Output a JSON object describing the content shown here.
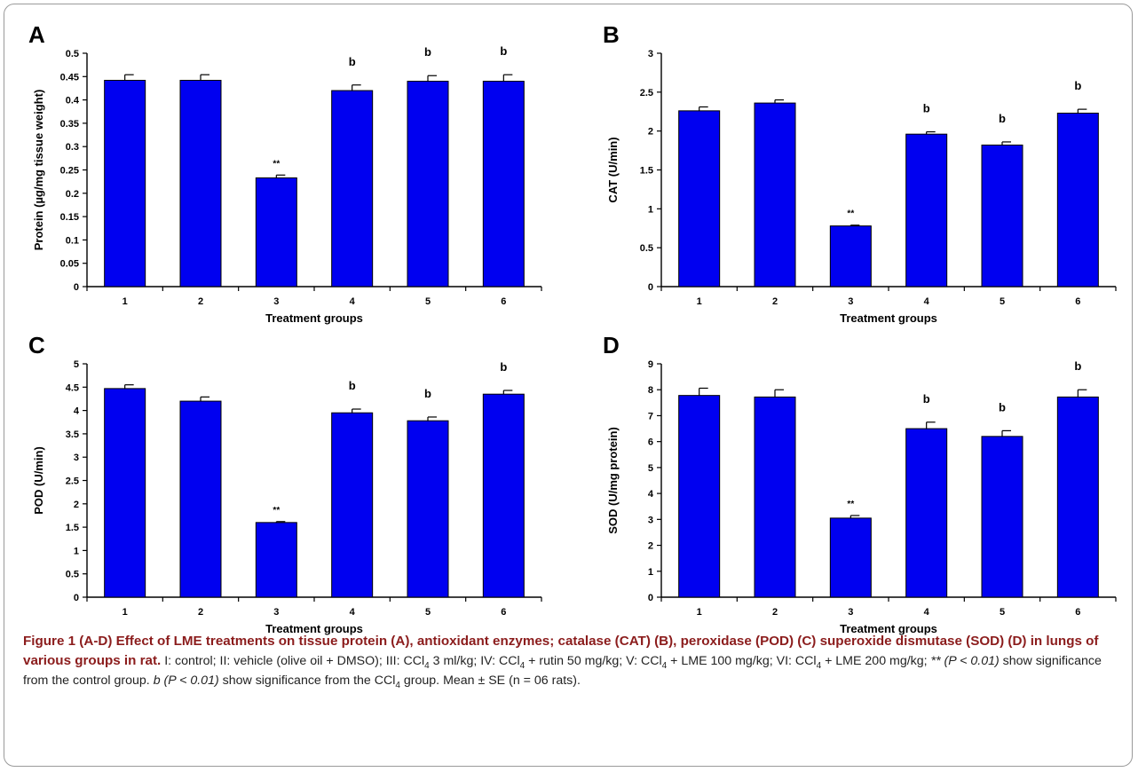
{
  "chart_data": [
    {
      "type": "bar",
      "panel": "A",
      "categories": [
        "1",
        "2",
        "3",
        "4",
        "5",
        "6"
      ],
      "values": [
        0.442,
        0.442,
        0.233,
        0.42,
        0.44,
        0.44
      ],
      "errors": [
        0.012,
        0.012,
        0.006,
        0.012,
        0.012,
        0.014
      ],
      "annotations": [
        "",
        "",
        "**",
        "b",
        "b",
        "b"
      ],
      "yticks": [
        "0",
        "0.05",
        "0.1",
        "0.15",
        "0.2",
        "0.25",
        "0.3",
        "0.35",
        "0.4",
        "0.45",
        "0.5"
      ],
      "ylim": [
        0,
        0.5
      ],
      "xlabel": "Treatment groups",
      "ylabel": "Protein (µg/mg tissue weight)"
    },
    {
      "type": "bar",
      "panel": "B",
      "categories": [
        "1",
        "2",
        "3",
        "4",
        "5",
        "6"
      ],
      "values": [
        2.26,
        2.36,
        0.78,
        1.96,
        1.82,
        2.23
      ],
      "errors": [
        0.05,
        0.04,
        0.01,
        0.03,
        0.04,
        0.05
      ],
      "annotations": [
        "",
        "",
        "**",
        "b",
        "b",
        "b"
      ],
      "yticks": [
        "0",
        "0.5",
        "1",
        "1.5",
        "2",
        "2.5",
        "3"
      ],
      "ylim": [
        0,
        3
      ],
      "xlabel": "Treatment groups",
      "ylabel": "CAT (U/min)"
    },
    {
      "type": "bar",
      "panel": "C",
      "categories": [
        "1",
        "2",
        "3",
        "4",
        "5",
        "6"
      ],
      "values": [
        4.47,
        4.2,
        1.6,
        3.95,
        3.78,
        4.35
      ],
      "errors": [
        0.08,
        0.09,
        0.02,
        0.08,
        0.08,
        0.08
      ],
      "annotations": [
        "",
        "",
        "**",
        "b",
        "b",
        "b"
      ],
      "yticks": [
        "0",
        "0.5",
        "1",
        "1.5",
        "2",
        "2.5",
        "3",
        "3.5",
        "4",
        "4.5",
        "5"
      ],
      "ylim": [
        0,
        5
      ],
      "xlabel": "Treatment groups",
      "ylabel": "POD (U/min)"
    },
    {
      "type": "bar",
      "panel": "D",
      "categories": [
        "1",
        "2",
        "3",
        "4",
        "5",
        "6"
      ],
      "values": [
        7.78,
        7.72,
        3.05,
        6.5,
        6.2,
        7.72
      ],
      "errors": [
        0.28,
        0.28,
        0.1,
        0.25,
        0.22,
        0.28
      ],
      "annotations": [
        "",
        "",
        "**",
        "b",
        "b",
        "b"
      ],
      "yticks": [
        "0",
        "1",
        "2",
        "3",
        "4",
        "5",
        "6",
        "7",
        "8",
        "9"
      ],
      "ylim": [
        0,
        9
      ],
      "xlabel": "Treatment groups",
      "ylabel": "SOD (U/mg protein)"
    }
  ],
  "colors": {
    "bar": "#0000f0",
    "caption_title": "#8b1c1c",
    "frame": "#9a9a9a"
  },
  "caption": {
    "title": "Figure 1 (A-D) Effect of LME treatments on tissue protein (A), antioxidant enzymes; catalase (CAT) (B), peroxidase (POD) (C) superoxide dismutase (SOD) (D) in lungs of various groups in rat.",
    "p1": " I: control; II: vehicle (olive oil + DMSO); III: CCl",
    "s1": "4",
    "p2": " 3 ml/kg; IV: CCl",
    "s2": "4",
    "p3": " + rutin 50 mg/kg; V: CCl",
    "s3": "4",
    "p4": " + LME 100 mg/kg; VI: CCl",
    "s4": "4",
    "p5": " + LME 200 mg/kg; ",
    "i1": "** (P < 0.01)",
    "p6": " show significance from the control group. ",
    "i2": "b (P < 0.01)",
    "p7": " show significance from the CCl",
    "s5": "4",
    "p8": " group. Mean ± SE (n = 06 rats)."
  }
}
